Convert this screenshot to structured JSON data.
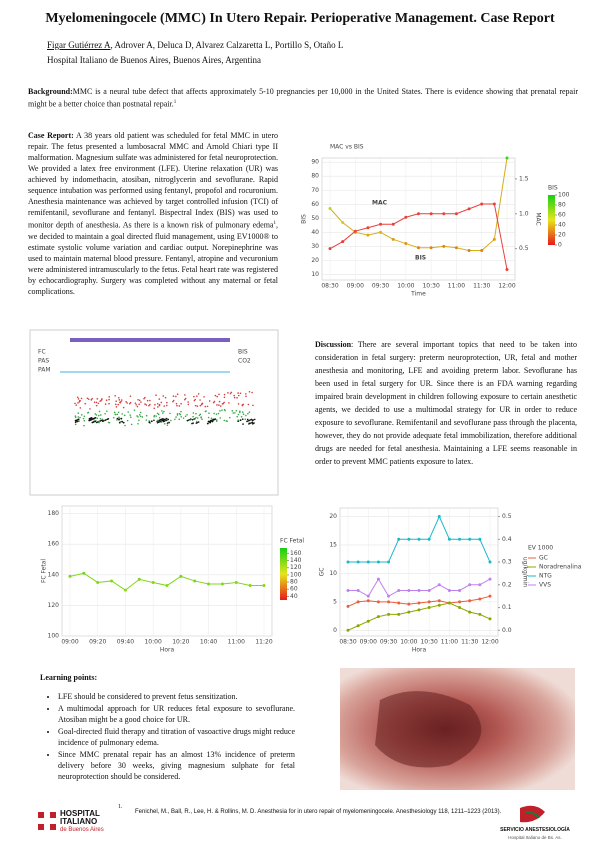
{
  "header": {
    "title": "Myelomeningocele (MMC) In Utero Repair. Perioperative Management. Case Report",
    "authors": {
      "presenting": "Figar Gutiérrez A",
      "others": ", Adrover A, Deluca D, Alvarez Calzaretta L, Portillo S, Otaño L"
    },
    "affiliation": "Hospital Italiano de Buenos Aires, Buenos Aires, Argentina"
  },
  "background": {
    "label": "Background:",
    "text": "MMC is a neural tube defect that affects approximately 5-10 pregnancies per 10,000 in the United States. There is evidence showing that prenatal repair might be a better choice than postnatal repair.",
    "sup": "1"
  },
  "case_report": {
    "label": "Case Report:",
    "text_1": " A 38 years old patient was scheduled for fetal MMC in utero repair. The fetus presented a lumbosacral MMC and Arnold Chiari type II malformation. Magnesium sulfate was administered for fetal neuroprotection. We provided a latex free environment (LFE). Uterine relaxation (UR) was achieved by indomethacin, atosiban, nitroglycerin and sevoflurane. Rapid sequence intubation was performed using fentanyl, propofol and rocuronium. Anesthesia maintenance was achieved by target controlled infusion (TCI) of remifentanil, sevoflurane and fentanyl. Bispectral Index (BIS) was used to monitor depth of anesthesia. As there is a known risk of pulmonary edema",
    "sup": "1",
    "text_2": ", we decided to maintain a goal directed fluid management, using EV1000® to estimate systolic volume variation and cardiac output. Norepinephrine was used to maintain maternal blood pressure. Fentanyl, atropine and vecuronium were administered intramuscularly to the fetus. Fetal heart rate was registered by echocardiography. Surgery was completed without any maternal or fetal complications."
  },
  "discussion": {
    "label": "Discussion",
    "text": ": There are several important topics that need to be taken into consideration in fetal surgery: preterm neuroprotection, UR, fetal and mother anesthesia and monitoring, LFE and avoiding preterm labor. Sevoflurane has been used in fetal surgery for UR. Since there is an FDA warning regarding impaired brain development in children following exposure to certain anesthetic agents, we decided to use a multimodal strategy for UR in order to reduce exposure to sevoflurane. Remifentanil and sevoflurane pass through the placenta, however, they do not provide adequate fetal immobilization, therefore additional drugs are needed for fetal anesthesia. Maintaining a LFE seems reasonable in order to prevent MMC patients exposure to latex."
  },
  "learning_points": {
    "title": "Learning points:",
    "items": [
      "LFE should be considered to prevent fetus sensitization.",
      "A multimodal approach for UR reduces fetal exposure to sevoflurane. Atosiban might be a good choice for UR.",
      "Goal-directed fluid therapy and titration of vasoactive drugs might reduce incidence of pulmonary edema.",
      "Since MMC prenatal repair has an almost 13% incidence of preterm delivery before 30 weeks, giving magnesium sulphate for fetal neuroprotection should be considered."
    ]
  },
  "monitor": {
    "labels": [
      "FC",
      "PAS",
      "PAM",
      "BIS",
      "CO2"
    ]
  },
  "reference": {
    "number": "1.",
    "text": "Fenichel, M., Ball, R., Lee, H. & Rollins, M. D. Anesthesia for in utero repair of myelomeningocele. Anesthesiology 118, 1211–1223 (2013)."
  },
  "logos": {
    "left": [
      "HOSPITAL",
      "ITALIANO",
      "de Buenos Aires"
    ],
    "right": [
      "SERVICIO ANESTESIOLOGÍA",
      "Hospital Italiano de Bs. As."
    ]
  },
  "chart_data": [
    {
      "type": "line",
      "title": "MAC vs BIS",
      "x_label": "Time",
      "y_label": "BIS",
      "y2_label": "MAC",
      "legend": "inline",
      "grid": true,
      "categories": [
        "08:30",
        null,
        "09:00",
        null,
        "09:30",
        null,
        "10:00",
        null,
        "10:30",
        null,
        "11:00",
        null,
        "11:30",
        null,
        "12:00"
      ],
      "series": [
        {
          "name": "BIS",
          "values": [
            57,
            47,
            40,
            38,
            40,
            35,
            32,
            29,
            29,
            30,
            29,
            27,
            27,
            35,
            93
          ]
        },
        {
          "name": "MAC",
          "color": "#e8413c",
          "axis": "y2",
          "values": [
            0.5,
            0.6,
            0.75,
            0.8,
            0.85,
            0.85,
            0.95,
            1.0,
            1.0,
            1.0,
            1.0,
            1.07,
            1.14,
            1.14,
            0.2
          ]
        }
      ],
      "ylim": [
        6,
        93
      ],
      "yticks": [
        10,
        20,
        30,
        40,
        50,
        60,
        70,
        80,
        90
      ],
      "y2lim": [
        0.05,
        1.8
      ],
      "y2ticks": [
        0.5,
        {
          "value": 1.0,
          "label": "1.0"
        },
        1.5
      ],
      "colorbar": {
        "label": "BIS",
        "lim": [
          0,
          100
        ],
        "ticks": [
          0,
          20,
          40,
          60,
          80,
          100
        ]
      }
    },
    {
      "type": "line",
      "x_label": "Hora",
      "y_label": "FC Fetal",
      "grid": true,
      "categories": [
        "09:00",
        null,
        "09:20",
        null,
        "09:40",
        null,
        "10:00",
        null,
        "10:20",
        null,
        "10:40",
        null,
        "11:00",
        null,
        "11:20"
      ],
      "values": [
        139,
        141,
        135,
        136,
        130,
        137,
        135,
        133,
        139,
        136,
        134,
        134,
        135,
        133,
        133
      ],
      "ylim": [
        100,
        185
      ],
      "yticks": [
        100,
        120,
        140,
        160,
        180
      ],
      "colorbar": {
        "label": "FC Fetal",
        "lim": [
          30,
          175
        ],
        "ticks": [
          40,
          60,
          80,
          100,
          120,
          140,
          160
        ]
      }
    },
    {
      "type": "line",
      "x_label": "Hora",
      "y_label": "GC",
      "y2_label": "ug/kg/min",
      "legend": "right",
      "legend_title": "EV 1000",
      "grid": true,
      "categories": [
        "08:30",
        null,
        "09:00",
        null,
        "09:30",
        null,
        "10:00",
        null,
        "10:30",
        null,
        "11:00",
        null,
        "11:30",
        null,
        "12:00"
      ],
      "series": [
        {
          "name": "GC",
          "color": "#e8603c",
          "values": [
            4.2,
            5,
            5.2,
            5,
            5,
            4.8,
            4.6,
            4.8,
            5,
            5.2,
            4.8,
            5,
            5.2,
            5.5,
            6
          ]
        },
        {
          "name": "Noradrenalina",
          "color": "#8aa800",
          "axis": "y2",
          "values": [
            0,
            0.02,
            0.04,
            0.06,
            0.07,
            0.07,
            0.08,
            0.09,
            0.1,
            0.11,
            0.12,
            0.1,
            0.08,
            0.07,
            0.05
          ]
        },
        {
          "name": "NTG",
          "color": "#1ab8c8",
          "axis": "y2",
          "values": [
            0.3,
            0.3,
            0.3,
            0.3,
            0.3,
            0.4,
            0.4,
            0.4,
            0.4,
            0.5,
            0.4,
            0.4,
            0.4,
            0.4,
            0.3
          ]
        },
        {
          "name": "VVS",
          "color": "#c080f0",
          "values": [
            7,
            7,
            6,
            9,
            6,
            7,
            7,
            7,
            7,
            8,
            7,
            7,
            8,
            8,
            9
          ]
        }
      ],
      "ylim": [
        -1,
        21.5
      ],
      "yticks": [
        0,
        5,
        10,
        15,
        20
      ],
      "y2lim": [
        -0.025,
        0.5375
      ],
      "y2ticks": [
        {
          "value": 0,
          "label": "0.0"
        },
        0.1,
        0.2,
        0.3,
        0.4,
        0.5
      ]
    }
  ]
}
